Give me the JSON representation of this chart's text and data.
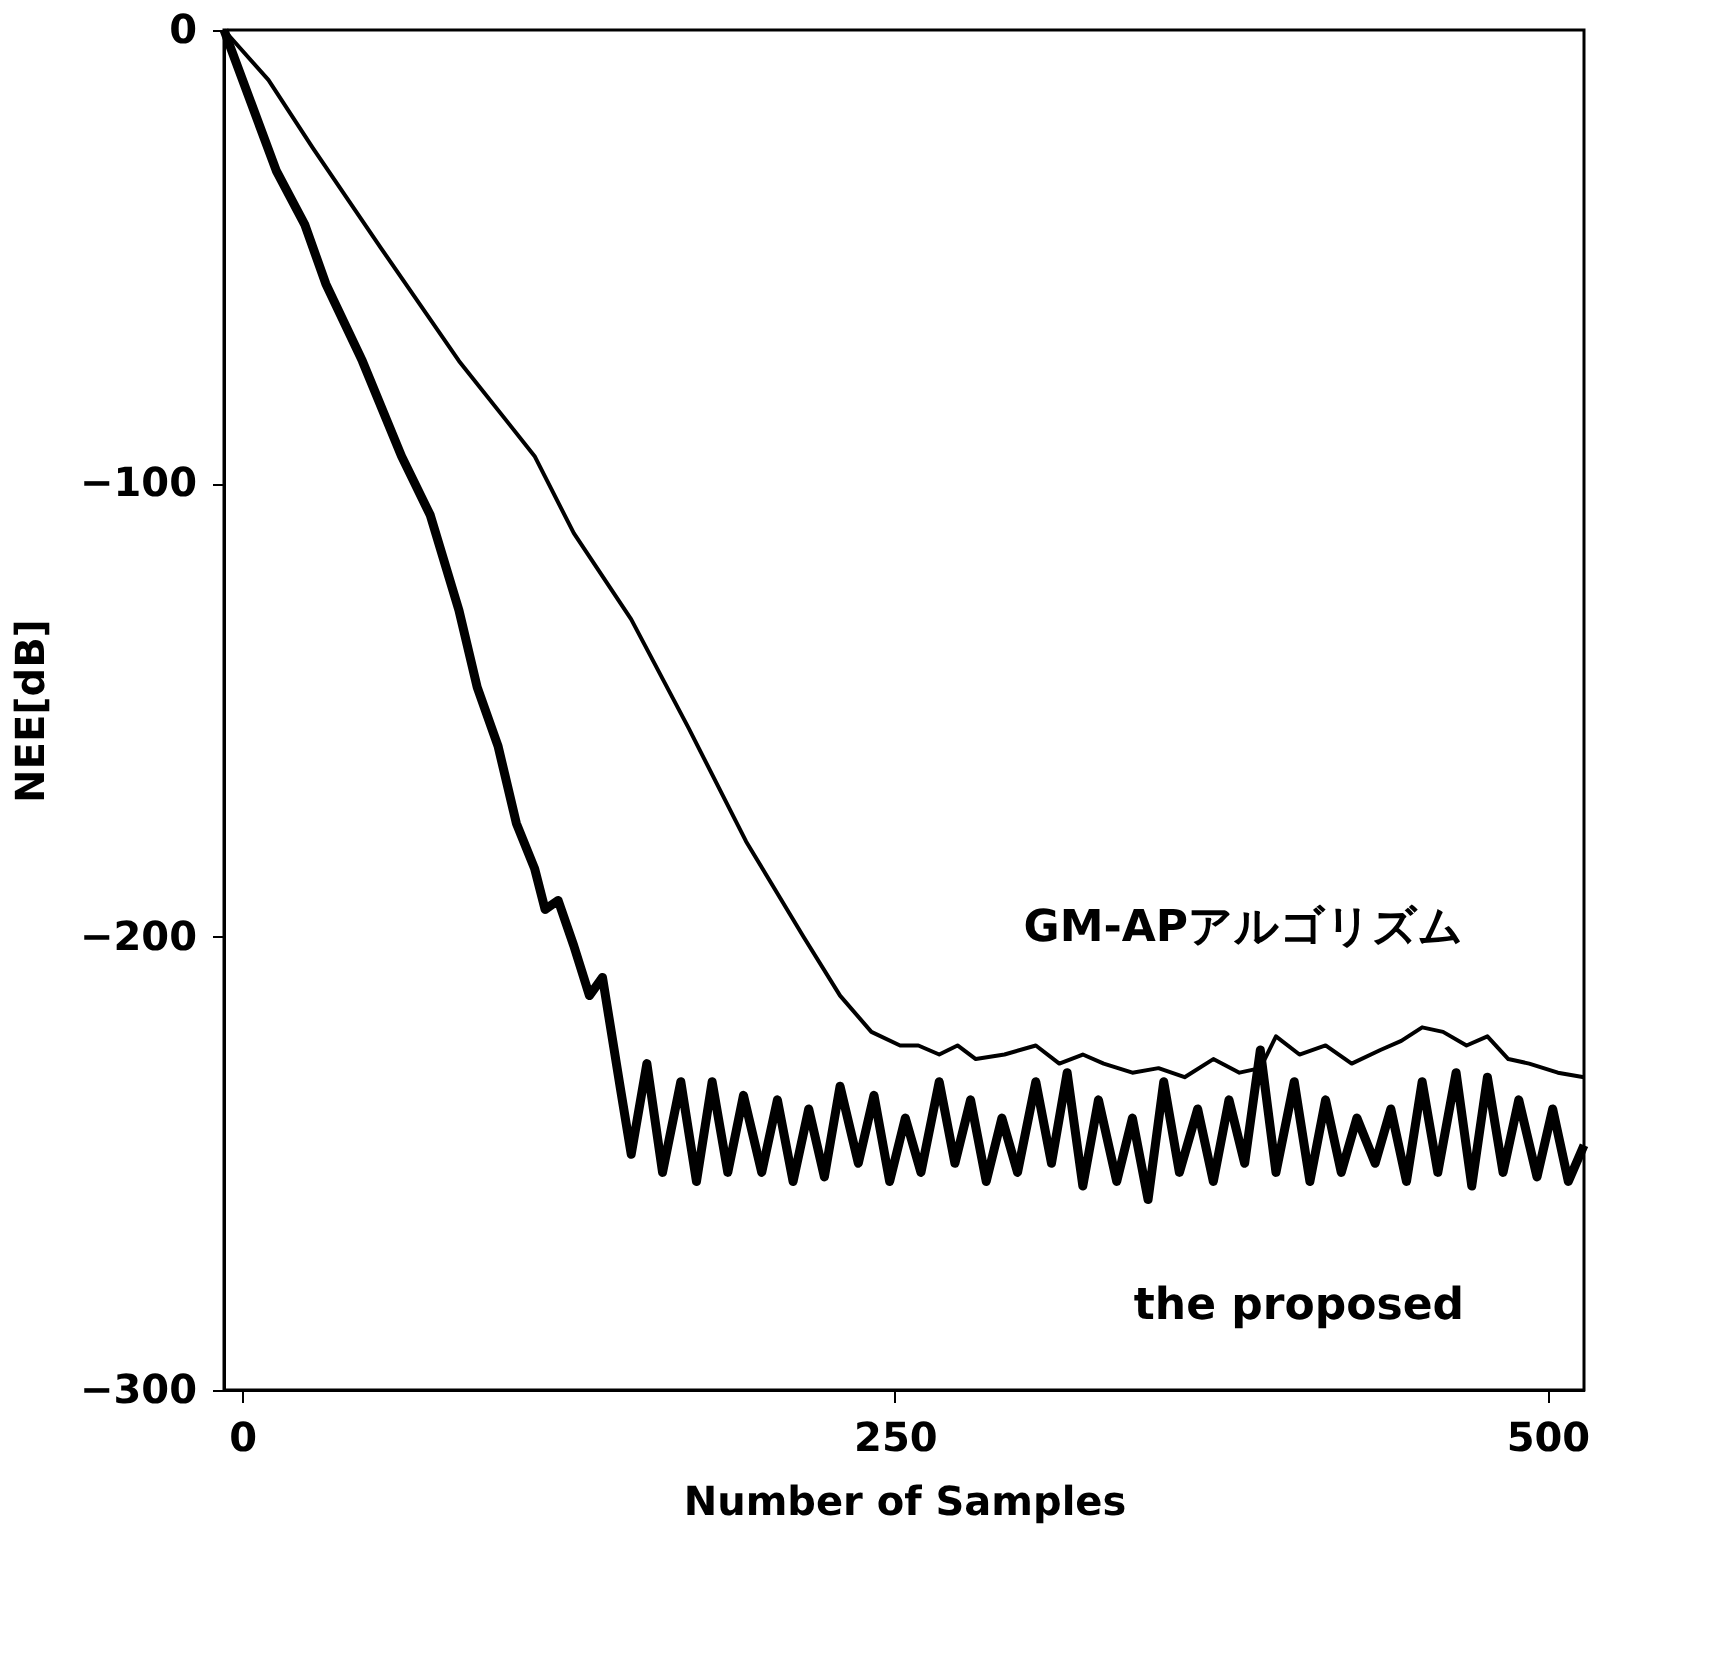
{
  "chart_data": {
    "type": "line",
    "xlabel": "Number of Samples",
    "ylabel": "NEE[dB]",
    "xlim": [
      -7,
      514
    ],
    "xticks": [
      0,
      250,
      500
    ],
    "ylim": [
      -300,
      0
    ],
    "yticks": [
      -300,
      -200,
      -100,
      0
    ],
    "grid": false,
    "marker": "none",
    "line_style": "solid",
    "series": [
      {
        "name": "GM-APアルゴリズム",
        "color": "#000000",
        "x": [
          -7,
          10,
          27,
          53,
          83,
          112,
          127,
          149,
          171,
          193,
          215,
          229,
          241,
          252,
          259,
          267,
          274,
          281,
          292,
          304,
          313,
          322,
          330,
          341,
          351,
          361,
          372,
          382,
          390,
          396,
          405,
          415,
          425,
          436,
          444,
          452,
          460,
          469,
          477,
          485,
          493,
          504,
          514
        ],
        "values": [
          0,
          -11,
          -26,
          -48,
          -73,
          -94,
          -111,
          -130,
          -154,
          -179,
          -200,
          -213,
          -221,
          -224,
          -224,
          -226,
          -224,
          -227,
          -226,
          -224,
          -228,
          -226,
          -228,
          -230,
          -229,
          -231,
          -227,
          -230,
          -229,
          -222,
          -226,
          -224,
          -228,
          -225,
          -223,
          -220,
          -221,
          -224,
          -222,
          -227,
          -228,
          -230,
          -231
        ]
      },
      {
        "name": "the proposed",
        "color": "#000000",
        "x": [
          -7,
          13,
          24,
          32,
          46,
          61,
          72,
          83,
          90,
          98,
          105,
          112,
          116,
          121,
          127,
          133,
          138,
          145,
          149,
          155,
          161,
          168,
          174,
          180,
          186,
          192,
          199,
          205,
          211,
          217,
          223,
          229,
          236,
          242,
          248,
          254,
          260,
          267,
          273,
          279,
          285,
          291,
          297,
          304,
          310,
          316,
          322,
          328,
          335,
          341,
          347,
          353,
          359,
          366,
          372,
          378,
          384,
          390,
          396,
          403,
          409,
          415,
          421,
          427,
          434,
          440,
          446,
          452,
          458,
          465,
          471,
          477,
          483,
          489,
          496,
          502,
          508,
          514
        ],
        "values": [
          0,
          -31,
          -43,
          -56,
          -73,
          -94,
          -107,
          -128,
          -145,
          -158,
          -175,
          -185,
          -194,
          -192,
          -202,
          -213,
          -209,
          -234,
          -248,
          -228,
          -252,
          -232,
          -254,
          -232,
          -252,
          -235,
          -252,
          -236,
          -254,
          -238,
          -253,
          -233,
          -250,
          -235,
          -254,
          -240,
          -252,
          -232,
          -250,
          -236,
          -254,
          -240,
          -252,
          -232,
          -250,
          -230,
          -255,
          -236,
          -254,
          -240,
          -258,
          -232,
          -252,
          -238,
          -254,
          -236,
          -250,
          -225,
          -252,
          -232,
          -254,
          -236,
          -252,
          -240,
          -250,
          -238,
          -254,
          -232,
          -252,
          -230,
          -255,
          -231,
          -252,
          -236,
          -253,
          -238,
          -254,
          -246
        ]
      }
    ]
  }
}
